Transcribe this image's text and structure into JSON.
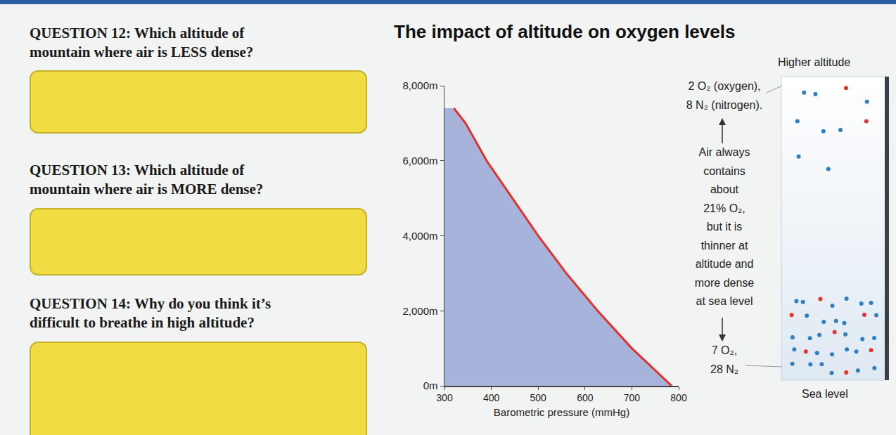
{
  "questions": [
    {
      "lines": [
        "QUESTION 12: Which altitude of",
        "mountain where air is LESS dense?"
      ]
    },
    {
      "lines": [
        "QUESTION 13: Which altitude of",
        "mountain where air is MORE dense?"
      ]
    },
    {
      "lines": [
        "QUESTION 14: Why do you think it’s",
        "difficult to breathe in high altitude?"
      ]
    }
  ],
  "chart_data": {
    "type": "area",
    "title": "The impact of altitude on oxygen levels",
    "x_label": "Barometric pressure (mmHg)",
    "x": [
      785,
      700,
      627,
      560,
      500,
      445,
      390,
      345,
      320
    ],
    "values": [
      0,
      1000,
      2000,
      3000,
      4000,
      5000,
      6000,
      7000,
      7400
    ],
    "color": "#e2312b",
    "xlim": [
      300,
      800
    ],
    "xticks": [
      300,
      400,
      500,
      600,
      700,
      800
    ],
    "ylim": [
      0,
      8000
    ],
    "yticks": [
      {
        "value": 0,
        "label": "0m"
      },
      {
        "value": 2000,
        "label": "2,000m"
      },
      {
        "value": 4000,
        "label": "4,000m"
      },
      {
        "value": 6000,
        "label": "6,000m"
      },
      {
        "value": 8000,
        "label": "8,000m"
      }
    ],
    "grid": false
  },
  "diagram": {
    "top_label": "Higher altitude",
    "bottom_label": "Sea level",
    "high": {
      "lines": [
        "2 O₂ (oxygen),",
        "8 N₂ (nitrogen)."
      ],
      "oxygen": 2,
      "nitrogen": 8
    },
    "middle_text": [
      "Air always",
      "contains",
      "about",
      "21% O₂,",
      "but it is",
      "thinner at",
      "altitude and",
      "more dense",
      "at sea level"
    ],
    "low": {
      "lines": [
        "7 O₂,",
        "28 N₂"
      ],
      "oxygen": 7,
      "nitrogen": 28
    },
    "oxygen_color": "#e0352f",
    "nitrogen_color": "#2f7fc0"
  }
}
